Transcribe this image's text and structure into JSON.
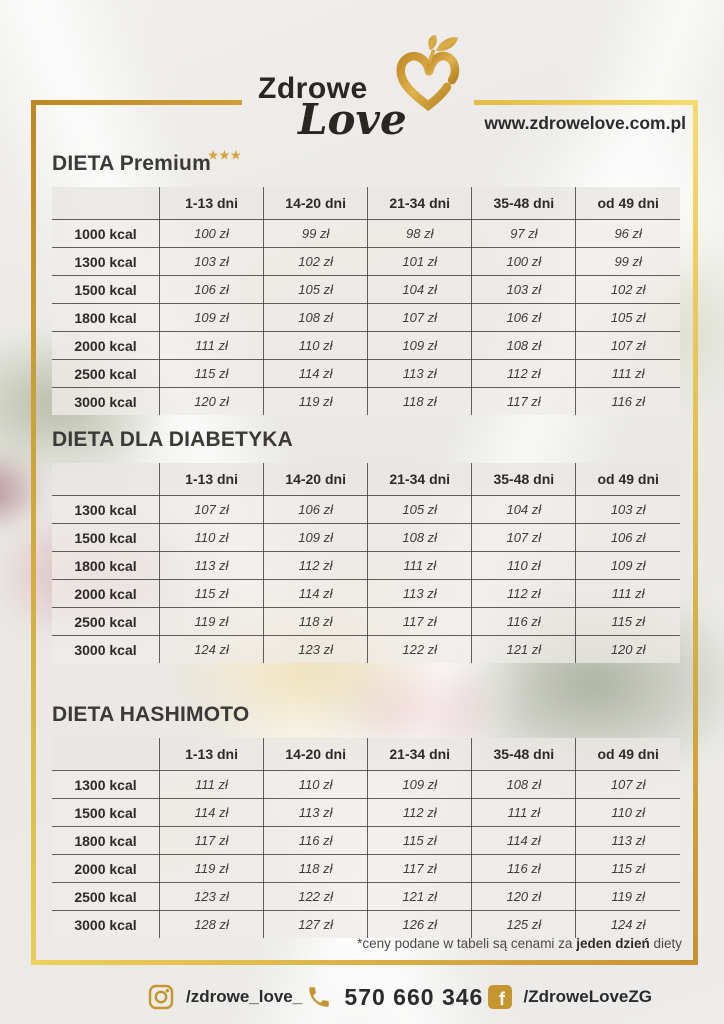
{
  "header": {
    "brand_word1": "Zdrowe",
    "brand_word2": "Love",
    "website": "www.zdrowelove.com.pl"
  },
  "columns": [
    "1-13 dni",
    "14-20 dni",
    "21-34 dni",
    "35-48 dni",
    "od 49 dni"
  ],
  "sections": [
    {
      "title": "DIETA Premium",
      "stars": "★★★",
      "rows": [
        {
          "kcal": "1000 kcal",
          "prices": [
            "100 zł",
            "99 zł",
            "98 zł",
            "97 zł",
            "96 zł"
          ]
        },
        {
          "kcal": "1300 kcal",
          "prices": [
            "103 zł",
            "102 zł",
            "101 zł",
            "100 zł",
            "99 zł"
          ]
        },
        {
          "kcal": "1500 kcal",
          "prices": [
            "106 zł",
            "105 zł",
            "104 zł",
            "103 zł",
            "102 zł"
          ]
        },
        {
          "kcal": "1800 kcal",
          "prices": [
            "109 zł",
            "108 zł",
            "107 zł",
            "106 zł",
            "105 zł"
          ]
        },
        {
          "kcal": "2000 kcal",
          "prices": [
            "111 zł",
            "110 zł",
            "109 zł",
            "108 zł",
            "107 zł"
          ]
        },
        {
          "kcal": "2500 kcal",
          "prices": [
            "115 zł",
            "114 zł",
            "113 zł",
            "112 zł",
            "111 zł"
          ]
        },
        {
          "kcal": "3000 kcal",
          "prices": [
            "120 zł",
            "119 zł",
            "118 zł",
            "117 zł",
            "116 zł"
          ]
        }
      ]
    },
    {
      "title": "DIETA DLA DIABETYKA",
      "stars": "",
      "rows": [
        {
          "kcal": "1300 kcal",
          "prices": [
            "107 zł",
            "106 zł",
            "105 zł",
            "104 zł",
            "103 zł"
          ]
        },
        {
          "kcal": "1500 kcal",
          "prices": [
            "110 zł",
            "109 zł",
            "108 zł",
            "107 zł",
            "106 zł"
          ]
        },
        {
          "kcal": "1800 kcal",
          "prices": [
            "113 zł",
            "112 zł",
            "111 zł",
            "110 zł",
            "109 zł"
          ]
        },
        {
          "kcal": "2000 kcal",
          "prices": [
            "115 zł",
            "114 zł",
            "113 zł",
            "112 zł",
            "111 zł"
          ]
        },
        {
          "kcal": "2500 kcal",
          "prices": [
            "119 zł",
            "118 zł",
            "117 zł",
            "116 zł",
            "115 zł"
          ]
        },
        {
          "kcal": "3000 kcal",
          "prices": [
            "124 zł",
            "123 zł",
            "122 zł",
            "121 zł",
            "120 zł"
          ]
        }
      ]
    },
    {
      "title": "DIETA HASHIMOTO",
      "stars": "",
      "rows": [
        {
          "kcal": "1300 kcal",
          "prices": [
            "111 zł",
            "110 zł",
            "109 zł",
            "108 zł",
            "107 zł"
          ]
        },
        {
          "kcal": "1500 kcal",
          "prices": [
            "114 zł",
            "113 zł",
            "112 zł",
            "111 zł",
            "110 zł"
          ]
        },
        {
          "kcal": "1800 kcal",
          "prices": [
            "117 zł",
            "116 zł",
            "115 zł",
            "114 zł",
            "113 zł"
          ]
        },
        {
          "kcal": "2000 kcal",
          "prices": [
            "119 zł",
            "118 zł",
            "117 zł",
            "116 zł",
            "115 zł"
          ]
        },
        {
          "kcal": "2500 kcal",
          "prices": [
            "123 zł",
            "122 zł",
            "121 zł",
            "120 zł",
            "119 zł"
          ]
        },
        {
          "kcal": "3000 kcal",
          "prices": [
            "128 zł",
            "127 zł",
            "126 zł",
            "125 zł",
            "124 zł"
          ]
        }
      ]
    }
  ],
  "footnote": {
    "prefix": "*ceny podane w tabeli są cenami za ",
    "bold": "jeden dzień",
    "suffix": " diety"
  },
  "contact": {
    "instagram": "/zdrowe_love_",
    "phone": "570 660 346",
    "facebook": "/ZdroweLoveZG"
  },
  "colors": {
    "gold": "#c79433",
    "gold_light": "#f2d96e",
    "gold_dark": "#b5821f",
    "text_dark": "#2b2723"
  }
}
